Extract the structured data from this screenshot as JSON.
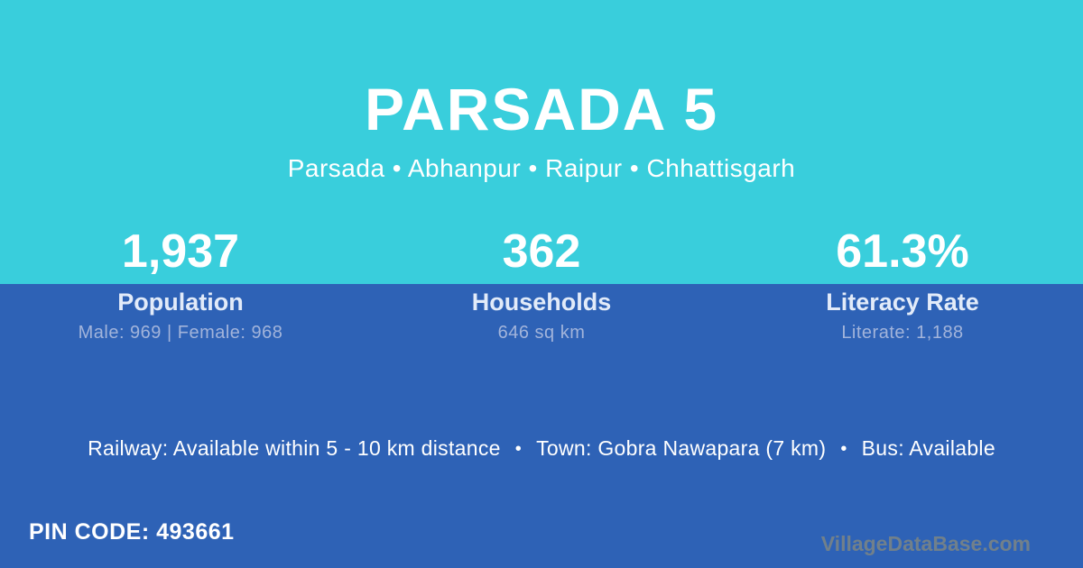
{
  "header": {
    "title": "PARSADA 5",
    "breadcrumb": "Parsada • Abhanpur • Raipur • Chhattisgarh"
  },
  "stats": [
    {
      "value": "1,937",
      "label": "Population",
      "detail": "Male: 969 | Female: 968"
    },
    {
      "value": "362",
      "label": "Households",
      "detail": "646 sq km"
    },
    {
      "value": "61.3%",
      "label": "Literacy Rate",
      "detail": "Literate: 1,188"
    }
  ],
  "transport": {
    "railway": "Railway: Available within 5 - 10 km distance",
    "separator": "•",
    "town": "Town: Gobra Nawapara (7 km)",
    "bus": "Bus: Available"
  },
  "footer": {
    "pin_code": "PIN CODE: 493661",
    "watermark": "VillageDataBase.com"
  },
  "colors": {
    "top_bg": "#39CEDC",
    "bottom_bg": "#2E62B6",
    "text_primary": "#FFFFFF",
    "text_label": "#E2EBF9",
    "text_muted": "#A2B4DB",
    "watermark": "#71808B"
  }
}
